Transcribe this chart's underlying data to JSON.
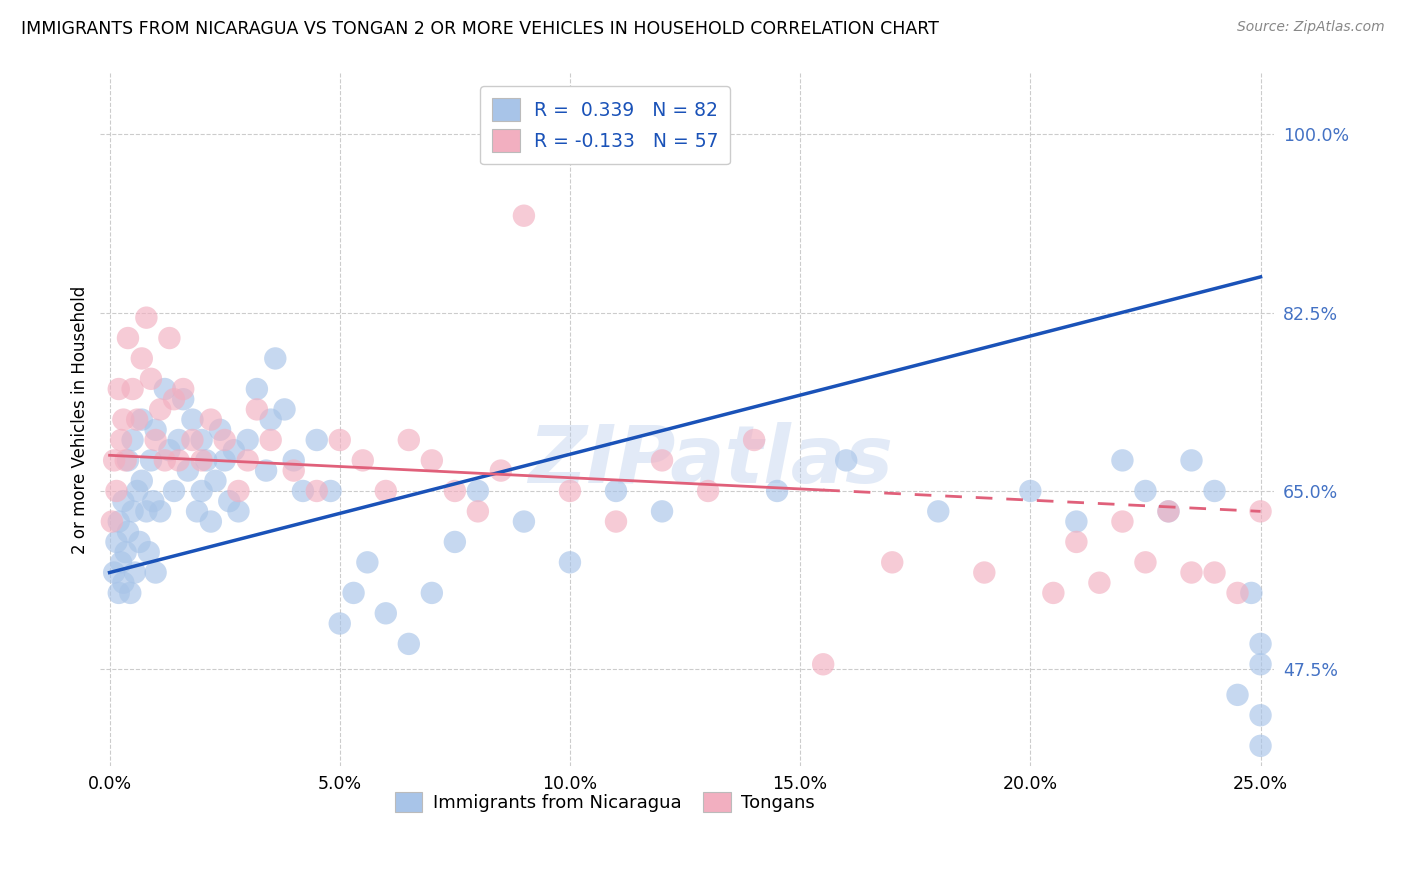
{
  "title": "IMMIGRANTS FROM NICARAGUA VS TONGAN 2 OR MORE VEHICLES IN HOUSEHOLD CORRELATION CHART",
  "source": "Source: ZipAtlas.com",
  "ylabel_label": "2 or more Vehicles in Household",
  "xmin": 0.0,
  "xmax": 25.0,
  "ymin": 38.0,
  "ymax": 106.0,
  "legend1_label": "R =  0.339   N = 82",
  "legend2_label": "R = -0.133   N = 57",
  "blue_scatter_color": "#a8c4e8",
  "pink_scatter_color": "#f2afc0",
  "blue_line_color": "#1a52b8",
  "pink_line_color": "#e0607a",
  "watermark": "ZIPatlas",
  "legend_entries": [
    "Immigrants from Nicaragua",
    "Tongans"
  ],
  "ytick_values": [
    47.5,
    65.0,
    82.5,
    100.0
  ],
  "xtick_values": [
    0.0,
    5.0,
    10.0,
    15.0,
    20.0,
    25.0
  ],
  "blue_line_x0": 0.0,
  "blue_line_y0": 57.0,
  "blue_line_x1": 25.0,
  "blue_line_y1": 86.0,
  "pink_line_x0": 0.0,
  "pink_line_y0": 68.5,
  "pink_line_x1": 25.0,
  "pink_line_y1": 63.0,
  "pink_dash_start": 15.5,
  "nic_x": [
    0.1,
    0.15,
    0.2,
    0.2,
    0.25,
    0.3,
    0.3,
    0.35,
    0.4,
    0.4,
    0.45,
    0.5,
    0.5,
    0.55,
    0.6,
    0.65,
    0.7,
    0.7,
    0.8,
    0.85,
    0.9,
    0.95,
    1.0,
    1.0,
    1.1,
    1.2,
    1.3,
    1.4,
    1.5,
    1.6,
    1.7,
    1.8,
    1.9,
    2.0,
    2.0,
    2.1,
    2.2,
    2.3,
    2.4,
    2.5,
    2.6,
    2.7,
    2.8,
    3.0,
    3.2,
    3.4,
    3.5,
    3.6,
    3.8,
    4.0,
    4.2,
    4.5,
    4.8,
    5.0,
    5.3,
    5.6,
    6.0,
    6.5,
    7.0,
    7.5,
    8.0,
    9.0,
    10.0,
    11.0,
    12.0,
    13.0,
    14.5,
    16.0,
    18.0,
    20.0,
    21.0,
    22.0,
    22.5,
    23.0,
    23.5,
    24.0,
    24.5,
    24.8,
    25.0,
    25.0,
    25.0,
    25.0
  ],
  "nic_y": [
    57.0,
    60.0,
    55.0,
    62.0,
    58.0,
    56.0,
    64.0,
    59.0,
    61.0,
    68.0,
    55.0,
    63.0,
    70.0,
    57.0,
    65.0,
    60.0,
    66.0,
    72.0,
    63.0,
    59.0,
    68.0,
    64.0,
    57.0,
    71.0,
    63.0,
    75.0,
    69.0,
    65.0,
    70.0,
    74.0,
    67.0,
    72.0,
    63.0,
    65.0,
    70.0,
    68.0,
    62.0,
    66.0,
    71.0,
    68.0,
    64.0,
    69.0,
    63.0,
    70.0,
    75.0,
    67.0,
    72.0,
    78.0,
    73.0,
    68.0,
    65.0,
    70.0,
    65.0,
    52.0,
    55.0,
    58.0,
    53.0,
    50.0,
    55.0,
    60.0,
    65.0,
    62.0,
    58.0,
    65.0,
    63.0,
    100.0,
    65.0,
    68.0,
    63.0,
    65.0,
    62.0,
    68.0,
    65.0,
    63.0,
    68.0,
    65.0,
    45.0,
    55.0,
    48.0,
    43.0,
    50.0,
    40.0
  ],
  "ton_x": [
    0.05,
    0.1,
    0.15,
    0.2,
    0.25,
    0.3,
    0.35,
    0.4,
    0.5,
    0.6,
    0.7,
    0.8,
    0.9,
    1.0,
    1.1,
    1.2,
    1.3,
    1.4,
    1.5,
    1.6,
    1.8,
    2.0,
    2.2,
    2.5,
    2.8,
    3.0,
    3.2,
    3.5,
    4.0,
    4.5,
    5.0,
    5.5,
    6.0,
    6.5,
    7.0,
    7.5,
    8.0,
    8.5,
    9.0,
    10.0,
    11.0,
    12.0,
    13.0,
    14.0,
    15.5,
    17.0,
    19.0,
    20.5,
    21.0,
    21.5,
    22.0,
    22.5,
    23.0,
    23.5,
    24.0,
    24.5,
    25.0
  ],
  "ton_y": [
    62.0,
    68.0,
    65.0,
    75.0,
    70.0,
    72.0,
    68.0,
    80.0,
    75.0,
    72.0,
    78.0,
    82.0,
    76.0,
    70.0,
    73.0,
    68.0,
    80.0,
    74.0,
    68.0,
    75.0,
    70.0,
    68.0,
    72.0,
    70.0,
    65.0,
    68.0,
    73.0,
    70.0,
    67.0,
    65.0,
    70.0,
    68.0,
    65.0,
    70.0,
    68.0,
    65.0,
    63.0,
    67.0,
    92.0,
    65.0,
    62.0,
    68.0,
    65.0,
    70.0,
    48.0,
    58.0,
    57.0,
    55.0,
    60.0,
    56.0,
    62.0,
    58.0,
    63.0,
    57.0,
    57.0,
    55.0,
    63.0
  ]
}
